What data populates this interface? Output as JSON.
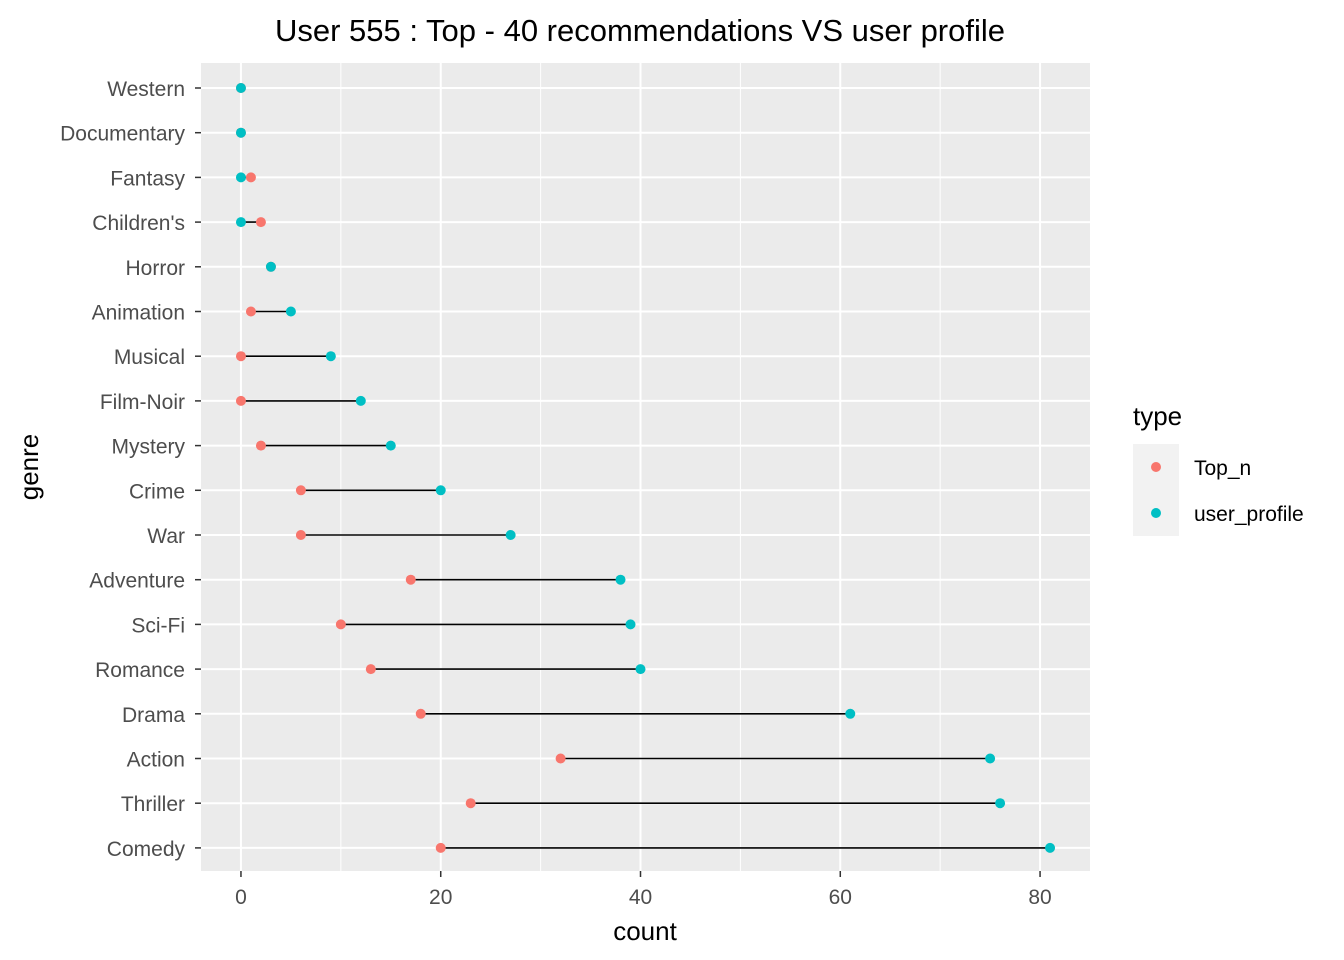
{
  "chart_data": {
    "type": "dumbbell",
    "title": "User  555 : Top -  40  recommendations VS user profile",
    "xlabel": "count",
    "ylabel": "genre",
    "xlim": [
      -4,
      85
    ],
    "x_ticks": [
      0,
      20,
      40,
      60,
      80
    ],
    "grid": true,
    "legend": {
      "title": "type",
      "position": "right",
      "entries": [
        {
          "name": "Top_n",
          "color": "#F8766D"
        },
        {
          "name": "user_profile",
          "color": "#00BFC4"
        }
      ]
    },
    "categories": [
      "Western",
      "Documentary",
      "Fantasy",
      "Children's",
      "Horror",
      "Animation",
      "Musical",
      "Film-Noir",
      "Mystery",
      "Crime",
      "War",
      "Adventure",
      "Sci-Fi",
      "Romance",
      "Drama",
      "Action",
      "Thriller",
      "Comedy"
    ],
    "series": [
      {
        "name": "Top_n",
        "color": "#F8766D",
        "values": [
          0,
          0,
          1,
          2,
          3,
          1,
          0,
          0,
          2,
          6,
          6,
          17,
          10,
          13,
          18,
          32,
          23,
          20
        ]
      },
      {
        "name": "user_profile",
        "color": "#00BFC4",
        "values": [
          0,
          0,
          0,
          0,
          3,
          5,
          9,
          12,
          15,
          20,
          27,
          38,
          39,
          40,
          61,
          75,
          76,
          81
        ]
      }
    ]
  }
}
